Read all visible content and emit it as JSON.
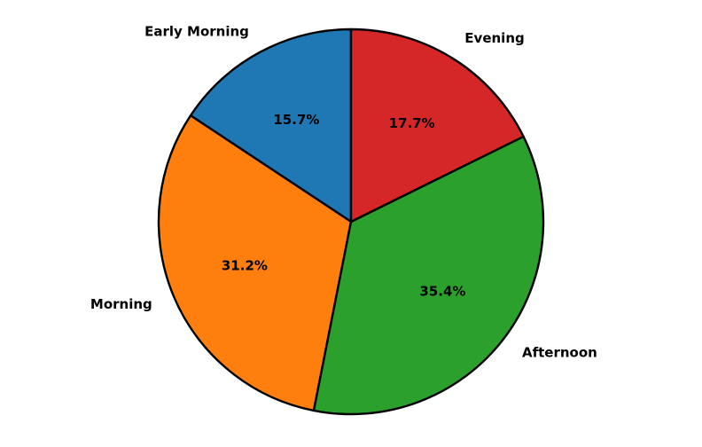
{
  "chart_data": {
    "type": "pie",
    "categories": [
      "Early Morning",
      "Morning",
      "Afternoon",
      "Evening"
    ],
    "values": [
      15.7,
      31.2,
      35.4,
      17.7
    ],
    "percent_labels": [
      "15.7%",
      "31.2%",
      "35.4%",
      "17.7%"
    ],
    "colors": [
      "#1f77b4",
      "#ff7f0e",
      "#2ca02c",
      "#d62728"
    ],
    "start_angle_deg": 90,
    "direction": "counterclockwise",
    "edge_color": "#000000",
    "title": "",
    "legend": "none"
  }
}
